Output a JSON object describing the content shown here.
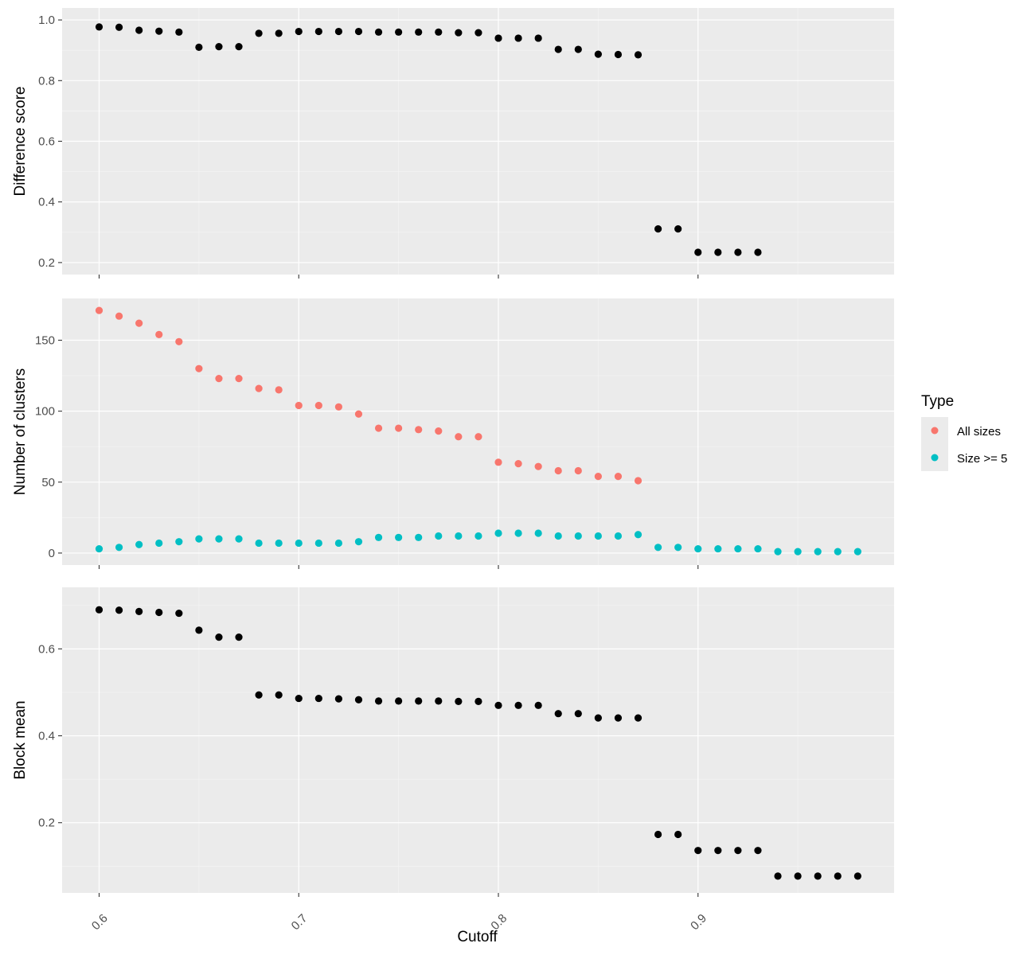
{
  "chart_data": [
    {
      "type": "scatter",
      "panel": "top",
      "ylabel": "Difference score",
      "xlabel": "",
      "ylim": [
        0.2,
        1.0
      ],
      "yticks": [
        "0.2",
        "0.4",
        "0.6",
        "0.8",
        "1.0"
      ],
      "x": [
        0.6,
        0.61,
        0.62,
        0.63,
        0.64,
        0.65,
        0.66,
        0.67,
        0.68,
        0.69,
        0.7,
        0.71,
        0.72,
        0.73,
        0.74,
        0.75,
        0.76,
        0.77,
        0.78,
        0.79,
        0.8,
        0.81,
        0.82,
        0.83,
        0.84,
        0.85,
        0.86,
        0.87,
        0.88,
        0.89,
        0.9,
        0.91,
        0.92,
        0.93
      ],
      "series": [
        {
          "color": "#000000",
          "values": [
            0.977,
            0.976,
            0.966,
            0.963,
            0.96,
            0.91,
            0.912,
            0.912,
            0.956,
            0.956,
            0.962,
            0.962,
            0.962,
            0.962,
            0.96,
            0.96,
            0.96,
            0.96,
            0.958,
            0.958,
            0.94,
            0.94,
            0.94,
            0.903,
            0.903,
            0.887,
            0.886,
            0.885,
            0.311,
            0.311,
            0.234,
            0.234,
            0.234,
            0.234
          ]
        }
      ]
    },
    {
      "type": "scatter",
      "panel": "middle",
      "ylabel": "Number of clusters",
      "xlabel": "",
      "ylim": [
        0,
        171
      ],
      "yticks": [
        "0",
        "50",
        "100",
        "150"
      ],
      "x": [
        0.6,
        0.61,
        0.62,
        0.63,
        0.64,
        0.65,
        0.66,
        0.67,
        0.68,
        0.69,
        0.7,
        0.71,
        0.72,
        0.73,
        0.74,
        0.75,
        0.76,
        0.77,
        0.78,
        0.79,
        0.8,
        0.81,
        0.82,
        0.83,
        0.84,
        0.85,
        0.86,
        0.87,
        0.88,
        0.89,
        0.9,
        0.91,
        0.92,
        0.93,
        0.94,
        0.95,
        0.96,
        0.97,
        0.98
      ],
      "series": [
        {
          "name": "All sizes",
          "color": "#F8766D",
          "values": [
            171,
            167,
            162,
            154,
            149,
            130,
            123,
            123,
            116,
            115,
            104,
            104,
            103,
            98,
            88,
            88,
            87,
            86,
            82,
            82,
            64,
            63,
            61,
            58,
            58,
            54,
            54,
            51,
            null,
            null,
            null,
            null,
            null,
            null,
            null,
            null,
            null,
            null,
            null
          ]
        },
        {
          "name": "Size >= 5",
          "color": "#00BFC4",
          "values": [
            3,
            4,
            6,
            7,
            8,
            10,
            10,
            10,
            7,
            7,
            7,
            7,
            7,
            8,
            11,
            11,
            11,
            12,
            12,
            12,
            14,
            14,
            14,
            12,
            12,
            12,
            12,
            13,
            4,
            4,
            3,
            3,
            3,
            3,
            1,
            1,
            1,
            1,
            1
          ]
        }
      ]
    },
    {
      "type": "scatter",
      "panel": "bottom",
      "ylabel": "Block mean",
      "xlabel": "Cutoff",
      "ylim": [
        0.07,
        0.71
      ],
      "yticks": [
        "0.2",
        "0.4",
        "0.6"
      ],
      "xticks": [
        "0.6",
        "0.7",
        "0.8",
        "0.9"
      ],
      "x": [
        0.6,
        0.61,
        0.62,
        0.63,
        0.64,
        0.65,
        0.66,
        0.67,
        0.68,
        0.69,
        0.7,
        0.71,
        0.72,
        0.73,
        0.74,
        0.75,
        0.76,
        0.77,
        0.78,
        0.79,
        0.8,
        0.81,
        0.82,
        0.83,
        0.84,
        0.85,
        0.86,
        0.87,
        0.88,
        0.89,
        0.9,
        0.91,
        0.92,
        0.93,
        0.94,
        0.95,
        0.96,
        0.97,
        0.98
      ],
      "series": [
        {
          "color": "#000000",
          "values": [
            0.69,
            0.689,
            0.686,
            0.684,
            0.682,
            0.643,
            0.627,
            0.627,
            0.494,
            0.494,
            0.486,
            0.486,
            0.485,
            0.483,
            0.48,
            0.48,
            0.48,
            0.48,
            0.479,
            0.479,
            0.47,
            0.47,
            0.47,
            0.451,
            0.451,
            0.441,
            0.441,
            0.441,
            0.173,
            0.173,
            0.136,
            0.136,
            0.136,
            0.136,
            0.077,
            0.077,
            0.077,
            0.077,
            0.077
          ]
        }
      ]
    }
  ],
  "legend": {
    "title": "Type",
    "position": "right",
    "items": [
      {
        "label": "All sizes",
        "color": "#F8766D"
      },
      {
        "label": "Size >= 5",
        "color": "#00BFC4"
      }
    ]
  }
}
